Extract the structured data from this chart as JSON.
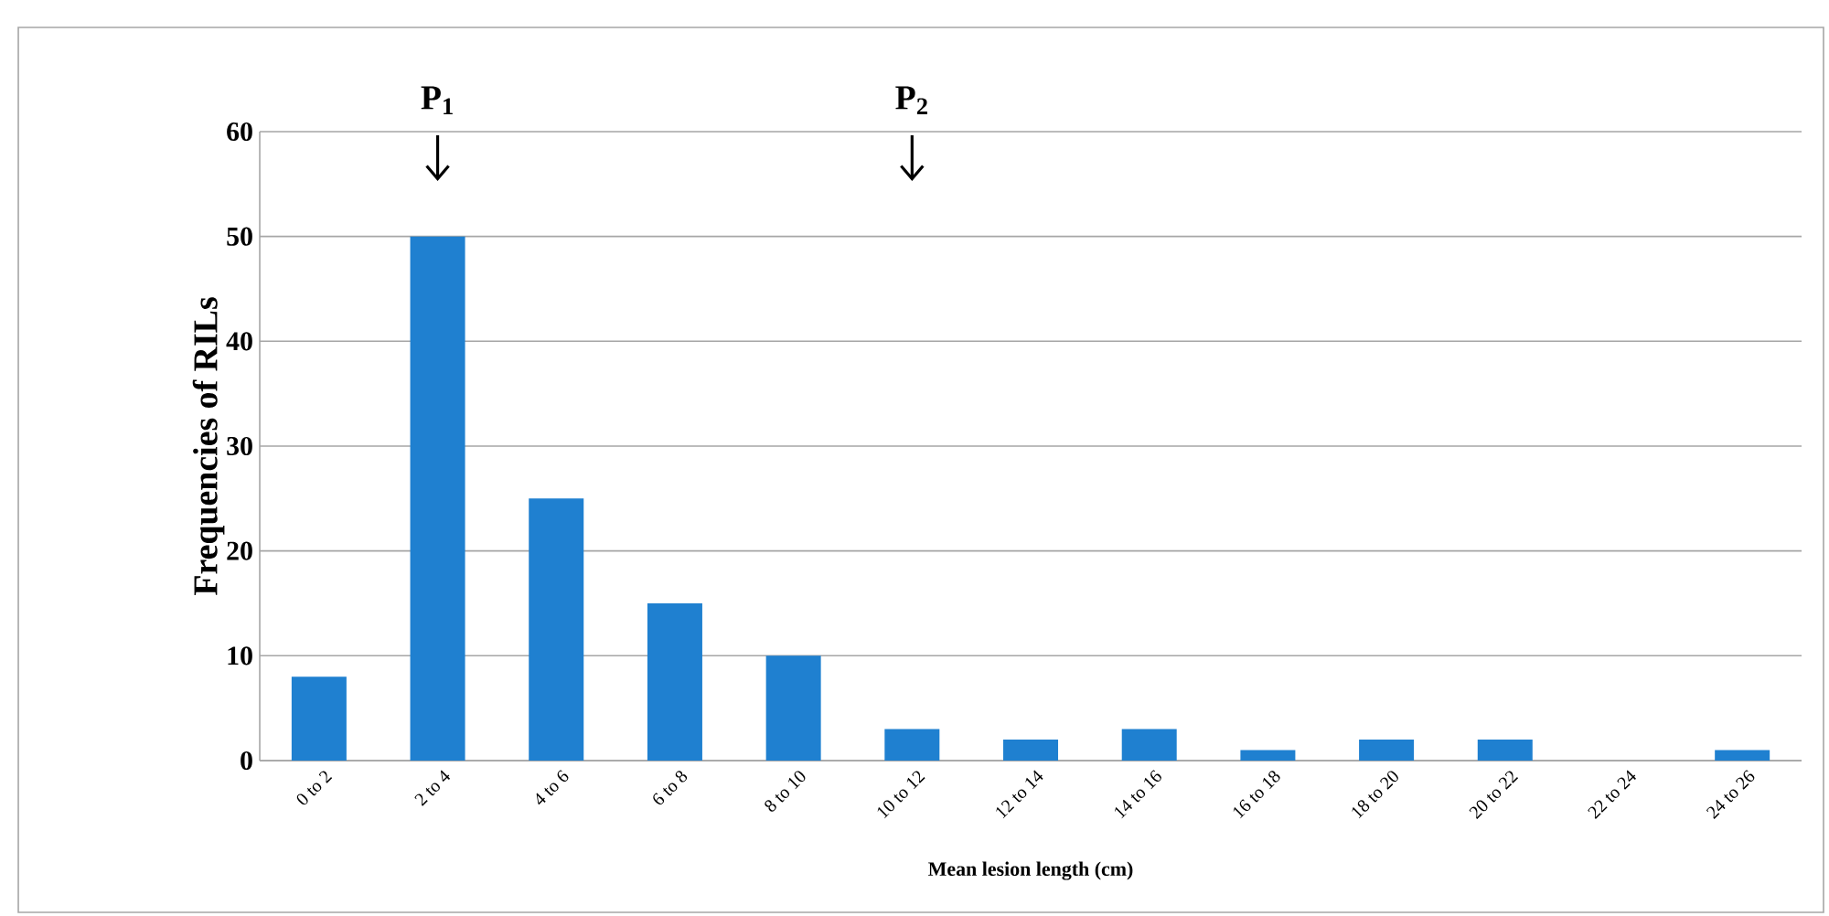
{
  "chart_data": {
    "type": "bar",
    "xlabel": "Mean lesion length (cm)",
    "ylabel": "Frequencies of RILs",
    "categories": [
      "0 to 2",
      "2 to 4",
      "4 to 6",
      "6 to 8",
      "8 to 10",
      "10 to 12",
      "12 to 14",
      "14 to 16",
      "16 to 18",
      "18 to 20",
      "20 to 22",
      "22 to 24",
      "24 to 26"
    ],
    "values": [
      8,
      50,
      25,
      15,
      10,
      3,
      2,
      3,
      1,
      2,
      2,
      0,
      1
    ],
    "color": "#1f80d0",
    "ylim": [
      0,
      60
    ],
    "yticks": [
      0,
      10,
      20,
      30,
      40,
      50,
      60
    ],
    "grid": "y",
    "annotations": [
      "P$_{1}$",
      "P$_{2}$"
    ]
  }
}
